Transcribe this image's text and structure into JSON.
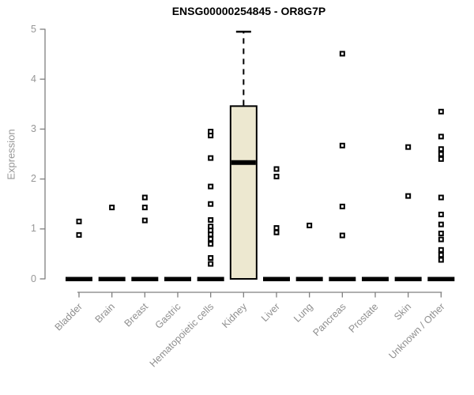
{
  "chart_data": {
    "type": "boxplot",
    "title": "ENSG00000254845 - OR8G7P",
    "xlabel": "",
    "ylabel": "Expression",
    "ylim": [
      0,
      5
    ],
    "yticks": [
      0,
      1,
      2,
      3,
      4,
      5
    ],
    "grid": false,
    "legend": null,
    "categories": [
      "Bladder",
      "Brain",
      "Breast",
      "Gastric",
      "Hematopoietic cells",
      "Kidney",
      "Liver",
      "Lung",
      "Pancreas",
      "Prostate",
      "Skin",
      "Unknown / Other"
    ],
    "boxes": [
      {
        "category": "Bladder",
        "q1": 0,
        "median": 0,
        "q3": 0,
        "whisker_low": 0,
        "whisker_high": 0,
        "outliers": [
          1.15,
          0.88
        ]
      },
      {
        "category": "Brain",
        "q1": 0,
        "median": 0,
        "q3": 0,
        "whisker_low": 0,
        "whisker_high": 0,
        "outliers": [
          1.43
        ]
      },
      {
        "category": "Breast",
        "q1": 0,
        "median": 0,
        "q3": 0,
        "whisker_low": 0,
        "whisker_high": 0,
        "outliers": [
          1.63,
          1.43,
          1.17
        ]
      },
      {
        "category": "Gastric",
        "q1": 0,
        "median": 0,
        "q3": 0,
        "whisker_low": 0,
        "whisker_high": 0,
        "outliers": []
      },
      {
        "category": "Hematopoietic cells",
        "q1": 0,
        "median": 0,
        "q3": 0,
        "whisker_low": 0,
        "whisker_high": 0,
        "outliers": [
          2.95,
          2.87,
          2.42,
          1.85,
          1.5,
          1.18,
          1.05,
          0.97,
          0.89,
          0.8,
          0.7,
          0.42,
          0.3
        ]
      },
      {
        "category": "Kidney",
        "q1": 0,
        "median": 2.33,
        "q3": 3.46,
        "whisker_low": 0,
        "whisker_high": 4.95,
        "outliers": []
      },
      {
        "category": "Liver",
        "q1": 0,
        "median": 0,
        "q3": 0,
        "whisker_low": 0,
        "whisker_high": 0,
        "outliers": [
          2.2,
          2.05,
          1.02,
          0.93
        ]
      },
      {
        "category": "Lung",
        "q1": 0,
        "median": 0,
        "q3": 0,
        "whisker_low": 0,
        "whisker_high": 0,
        "outliers": [
          1.07
        ]
      },
      {
        "category": "Pancreas",
        "q1": 0,
        "median": 0,
        "q3": 0,
        "whisker_low": 0,
        "whisker_high": 0,
        "outliers": [
          4.51,
          2.67,
          1.45,
          0.87
        ]
      },
      {
        "category": "Prostate",
        "q1": 0,
        "median": 0,
        "q3": 0,
        "whisker_low": 0,
        "whisker_high": 0,
        "outliers": []
      },
      {
        "category": "Skin",
        "q1": 0,
        "median": 0,
        "q3": 0,
        "whisker_low": 0,
        "whisker_high": 0,
        "outliers": [
          2.64,
          1.66
        ]
      },
      {
        "category": "Unknown / Other",
        "q1": 0,
        "median": 0,
        "q3": 0,
        "whisker_low": 0,
        "whisker_high": 0,
        "outliers": [
          3.35,
          2.85,
          2.6,
          2.5,
          2.4,
          1.63,
          1.29,
          1.09,
          0.91,
          0.79,
          0.58,
          0.48,
          0.38
        ]
      }
    ]
  },
  "colors": {
    "box_fill": "#EDE8D0",
    "box_stroke": "#000000",
    "median": "#000000",
    "outlier_stroke": "#000000",
    "axis_line": "#7F7F7F",
    "muted_text": "#969696",
    "title_text": "#000000"
  }
}
